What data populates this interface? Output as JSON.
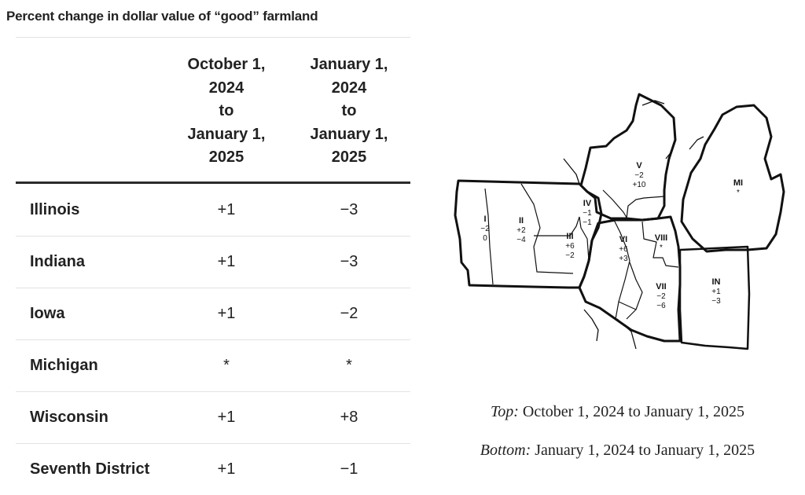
{
  "title": "Percent change in dollar value of “good” farmland",
  "table": {
    "columns": [
      "October 1,\n2024\nto\nJanuary 1,\n2025",
      "January 1,\n2024\nto\nJanuary 1,\n2025"
    ],
    "rows": [
      {
        "name": "Illinois",
        "v1": "+1",
        "v2": "−3"
      },
      {
        "name": "Indiana",
        "v1": "+1",
        "v2": "−3"
      },
      {
        "name": "Iowa",
        "v1": "+1",
        "v2": "−2"
      },
      {
        "name": "Michigan",
        "v1": "*",
        "v2": "*"
      },
      {
        "name": "Wisconsin",
        "v1": "+1",
        "v2": "+8"
      },
      {
        "name": "Seventh District",
        "v1": "+1",
        "v2": "−1"
      }
    ]
  },
  "map": {
    "regions": [
      {
        "label": "I",
        "top": "−2",
        "bottom": "0"
      },
      {
        "label": "II",
        "top": "+2",
        "bottom": "−4"
      },
      {
        "label": "III",
        "top": "+6",
        "bottom": "−2"
      },
      {
        "label": "IV",
        "top": "−1",
        "bottom": "−1"
      },
      {
        "label": "V",
        "top": "−2",
        "bottom": "+10"
      },
      {
        "label": "VI",
        "top": "+6",
        "bottom": "+3"
      },
      {
        "label": "VII",
        "top": "−2",
        "bottom": "−6"
      },
      {
        "label": "VIII",
        "top": "*",
        "bottom": ""
      },
      {
        "label": "MI",
        "top": "*",
        "bottom": ""
      },
      {
        "label": "IN",
        "top": "+1",
        "bottom": "−3"
      }
    ]
  },
  "captions": {
    "top_label": "Top:",
    "top_text": " October 1, 2024 to January 1, 2025",
    "bottom_label": "Bottom:",
    "bottom_text": " January 1, 2024 to January 1, 2025"
  }
}
